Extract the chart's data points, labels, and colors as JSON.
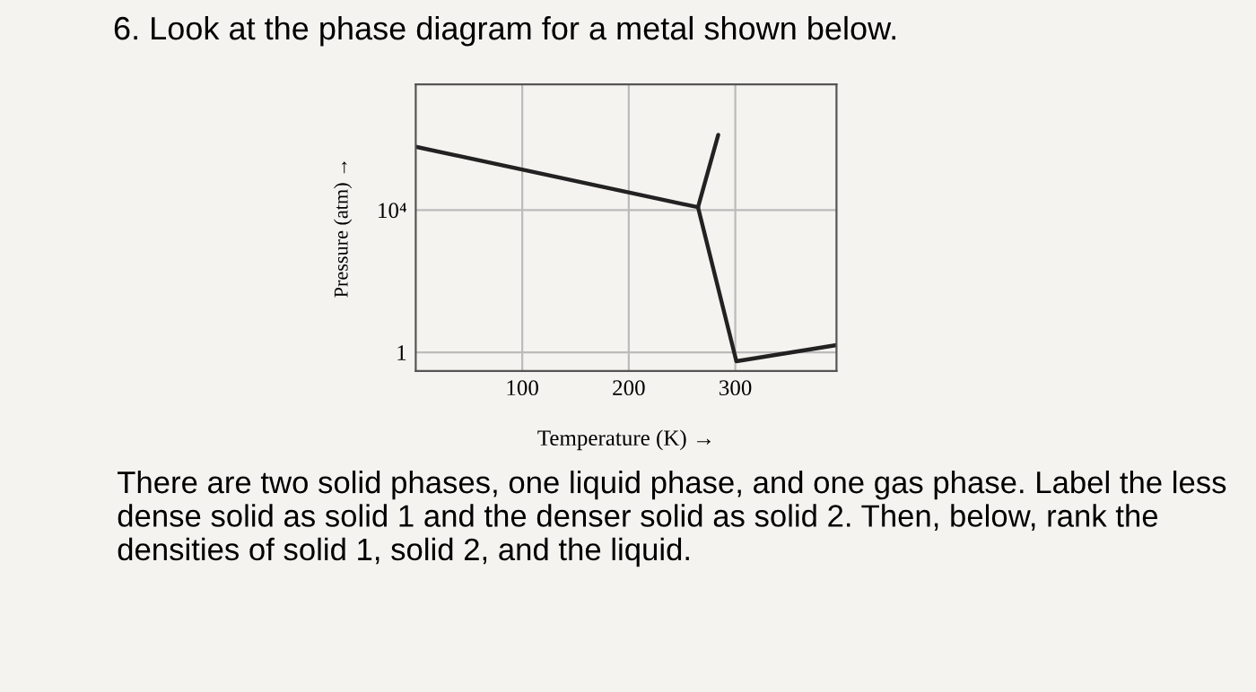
{
  "chart_data": {
    "type": "line",
    "title": "6. Look at the phase diagram for a metal shown below.",
    "xlabel": "Temperature (K) →",
    "ylabel": "Pressure (atm) →",
    "series": [
      {
        "color": "#222222",
        "x": [
          0,
          265
        ],
        "values": [
          600000,
          12000
        ]
      },
      {
        "color": "#222222",
        "x": [
          265,
          284
        ],
        "values": [
          12000,
          1300000
        ]
      },
      {
        "color": "#222222",
        "x": [
          265,
          301,
          395
        ],
        "values": [
          12000,
          0.56,
          1.6
        ]
      }
    ],
    "xlim": [
      0,
      395
    ],
    "ylim": [
      0.3,
      34000000
    ],
    "xticks": [
      100,
      200,
      300
    ],
    "yticks": [
      1,
      {
        "value": 10000,
        "label": "10⁴"
      }
    ],
    "log": "y",
    "grid": true,
    "marker": "none",
    "line_style": "solid",
    "annotations": [
      "There are two solid phases, one liquid phase, and one gas phase. Label the less dense solid as solid 1 and the denser solid as solid 2. Then, below, rank the densities of solid 1, solid 2, and the liquid."
    ]
  }
}
